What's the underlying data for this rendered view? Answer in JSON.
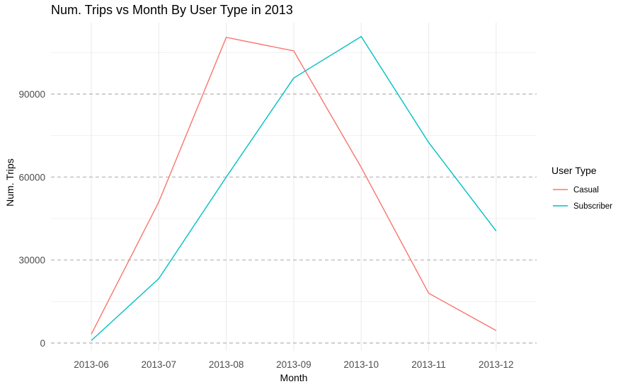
{
  "chart_data": {
    "type": "line",
    "title": "Num. Trips vs Month By User Type in 2013",
    "xlabel": "Month",
    "ylabel": "Num. Trips",
    "categories": [
      "2013-06",
      "2013-07",
      "2013-08",
      "2013-09",
      "2013-10",
      "2013-11",
      "2013-12"
    ],
    "ylim": [
      0,
      110000
    ],
    "yticks": [
      0,
      30000,
      60000,
      90000
    ],
    "grid": true,
    "legend": {
      "title": "User Type",
      "position": "right"
    },
    "series": [
      {
        "name": "Casual",
        "color": "#F8766D",
        "values": [
          3200,
          51000,
          110500,
          105600,
          63500,
          18000,
          4500
        ]
      },
      {
        "name": "Subscriber",
        "color": "#00BFC4",
        "values": [
          900,
          23300,
          60000,
          95800,
          110800,
          72500,
          40500
        ]
      }
    ]
  }
}
